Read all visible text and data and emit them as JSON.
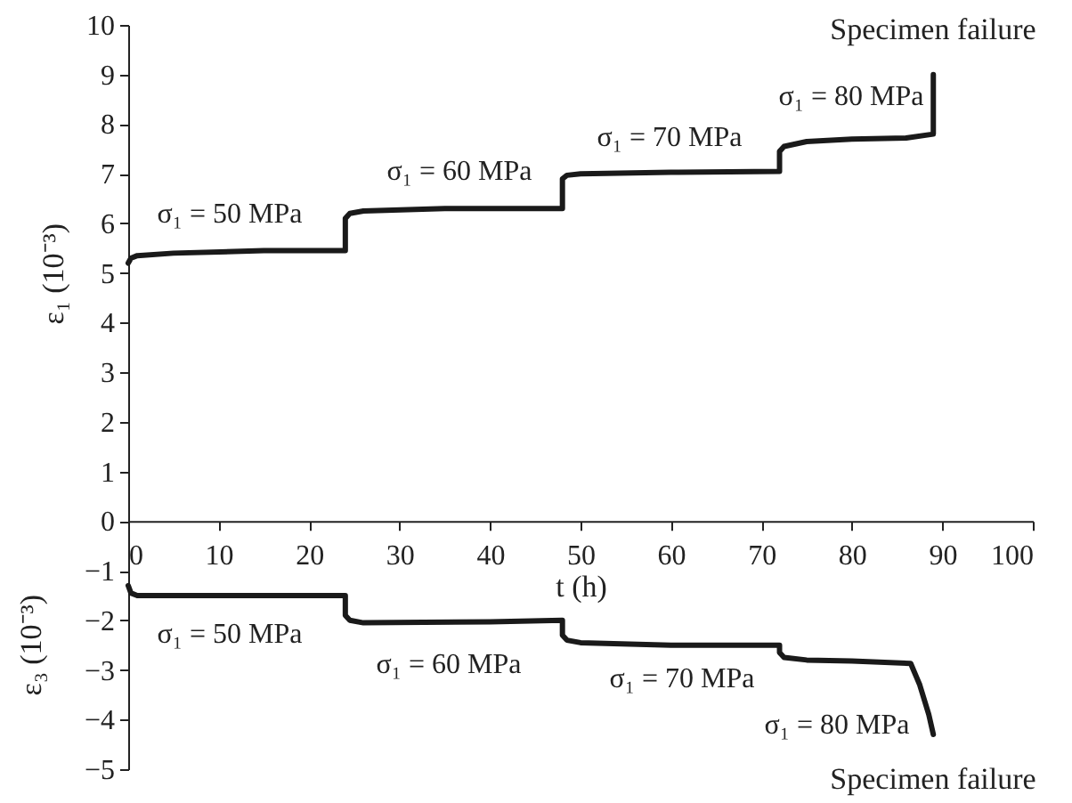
{
  "chart_data": {
    "type": "line",
    "ylabel": "ε₁ (10⁻³)",
    "xlabel": "t (h)",
    "xlim": [
      0,
      100
    ],
    "xticks": [
      0,
      10,
      20,
      30,
      40,
      50,
      60,
      70,
      80,
      90,
      100
    ],
    "ylim": [
      -5,
      10
    ],
    "yticks": [
      -5,
      -4,
      -3,
      -2,
      -1,
      0,
      1,
      2,
      3,
      4,
      5,
      6,
      7,
      8,
      9,
      10
    ],
    "grid": false,
    "marker": "none",
    "line_style": "solid",
    "series": [
      {
        "color": "#1a1a1a",
        "x": [
          0,
          0.3,
          1,
          5,
          15,
          24,
          24,
          24.5,
          26,
          35,
          48,
          48,
          48.5,
          50,
          60,
          72,
          72,
          72.5,
          75,
          80,
          86,
          89,
          89,
          89
        ],
        "values": [
          5.2,
          5.3,
          5.35,
          5.4,
          5.45,
          5.45,
          6.1,
          6.2,
          6.25,
          6.3,
          6.3,
          6.9,
          6.97,
          7.0,
          7.03,
          7.05,
          7.45,
          7.55,
          7.65,
          7.7,
          7.72,
          7.8,
          8.5,
          9.0
        ]
      },
      {
        "color": "#1a1a1a",
        "x": [
          0,
          0.3,
          1,
          10,
          24,
          24,
          24.5,
          26,
          40,
          48,
          48,
          48.5,
          50,
          60,
          72,
          72,
          72.5,
          75,
          80,
          86.5,
          87.5,
          88.5,
          89
        ],
        "values": [
          -1.3,
          -1.45,
          -1.5,
          -1.5,
          -1.5,
          -1.9,
          -2.0,
          -2.05,
          -2.03,
          -2.0,
          -2.3,
          -2.4,
          -2.45,
          -2.5,
          -2.5,
          -2.65,
          -2.75,
          -2.8,
          -2.82,
          -2.87,
          -3.3,
          -3.9,
          -4.3
        ]
      }
    ],
    "annotations": [
      "σ₁ = 50 MPa",
      "σ₁ = 60 MPa",
      "σ₁ = 70 MPa",
      "σ₁ = 80 MPa",
      "Specimen failure",
      "σ₁ = 50 MPa",
      "σ₁ = 60 MPa",
      "σ₁ = 70 MPa",
      "σ₁ = 80 MPa",
      "Specimen failure",
      "ε₃ (10⁻³)"
    ]
  }
}
